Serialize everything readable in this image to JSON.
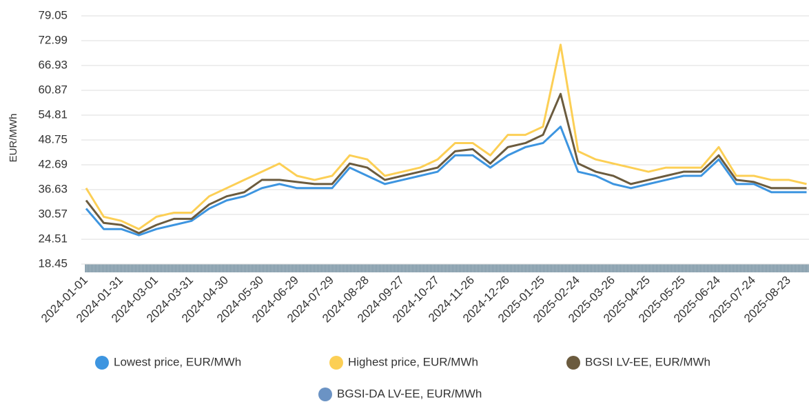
{
  "chart_data": {
    "type": "line",
    "y_label": "EUR/MWh",
    "categories": [
      "2024-01-01",
      null,
      "2024-01-31",
      null,
      "2024-03-01",
      null,
      "2024-03-31",
      null,
      "2024-04-30",
      null,
      "2024-05-30",
      null,
      "2024-06-29",
      null,
      "2024-07-29",
      null,
      "2024-08-28",
      null,
      "2024-09-27",
      null,
      "2024-10-27",
      null,
      "2024-11-26",
      null,
      "2024-12-26",
      null,
      "2025-01-25",
      null,
      "2025-02-24",
      null,
      "2025-03-26",
      null,
      "2025-04-25",
      null,
      "2025-05-25",
      null,
      "2025-06-24",
      null,
      "2025-07-24",
      null,
      "2025-08-23",
      null
    ],
    "series": [
      {
        "name": "Lowest price, EUR/MWh",
        "color": "#3d95e0",
        "values": [
          32,
          27,
          27,
          25.5,
          27,
          28,
          29,
          32,
          34,
          35,
          37,
          38,
          37,
          37,
          37,
          42,
          40,
          38,
          39,
          40,
          41,
          45,
          45,
          42,
          45,
          47,
          48,
          52,
          41,
          40,
          38,
          37,
          38,
          39,
          40,
          40,
          44,
          38,
          38,
          36,
          36,
          36
        ]
      },
      {
        "name": "Highest price, EUR/MWh",
        "color": "#fccf55",
        "values": [
          37,
          30,
          29,
          27,
          30,
          31,
          31,
          35,
          37,
          39,
          41,
          43,
          40,
          39,
          40,
          45,
          44,
          40,
          41,
          42,
          44,
          48,
          48,
          45,
          50,
          50,
          52,
          72,
          46,
          44,
          43,
          42,
          41,
          42,
          42,
          42,
          47,
          40,
          40,
          39,
          39,
          38
        ]
      },
      {
        "name": "BGSI LV-EE, EUR/MWh",
        "color": "#6b5b3e",
        "values": [
          34,
          28.5,
          28,
          26,
          28,
          29.5,
          29.5,
          33,
          35,
          36,
          39,
          39,
          38.5,
          38,
          38,
          43,
          42,
          39,
          40,
          41,
          42,
          46,
          46.5,
          43,
          47,
          48,
          50,
          60,
          43,
          41,
          40,
          38,
          39,
          40,
          41,
          41,
          45,
          39,
          38.5,
          37,
          37,
          37
        ]
      },
      {
        "name": "BGSI-DA LV-EE, EUR/MWh",
        "color": "#6b93c4",
        "values": [
          null,
          null,
          null,
          null,
          null,
          null,
          null,
          null,
          null,
          null,
          null,
          null,
          null,
          null,
          null,
          null,
          null,
          null,
          null,
          null,
          null,
          null,
          null,
          null,
          null,
          null,
          null,
          null,
          null,
          null,
          null,
          null,
          null,
          null,
          null,
          null,
          null,
          null,
          null,
          null,
          null,
          null
        ]
      }
    ],
    "ylim": [
      18.45,
      79.05
    ],
    "yticks": [
      18.45,
      24.51,
      30.57,
      36.63,
      42.69,
      48.75,
      54.81,
      60.87,
      66.93,
      72.99,
      79.05
    ],
    "grid": true
  }
}
